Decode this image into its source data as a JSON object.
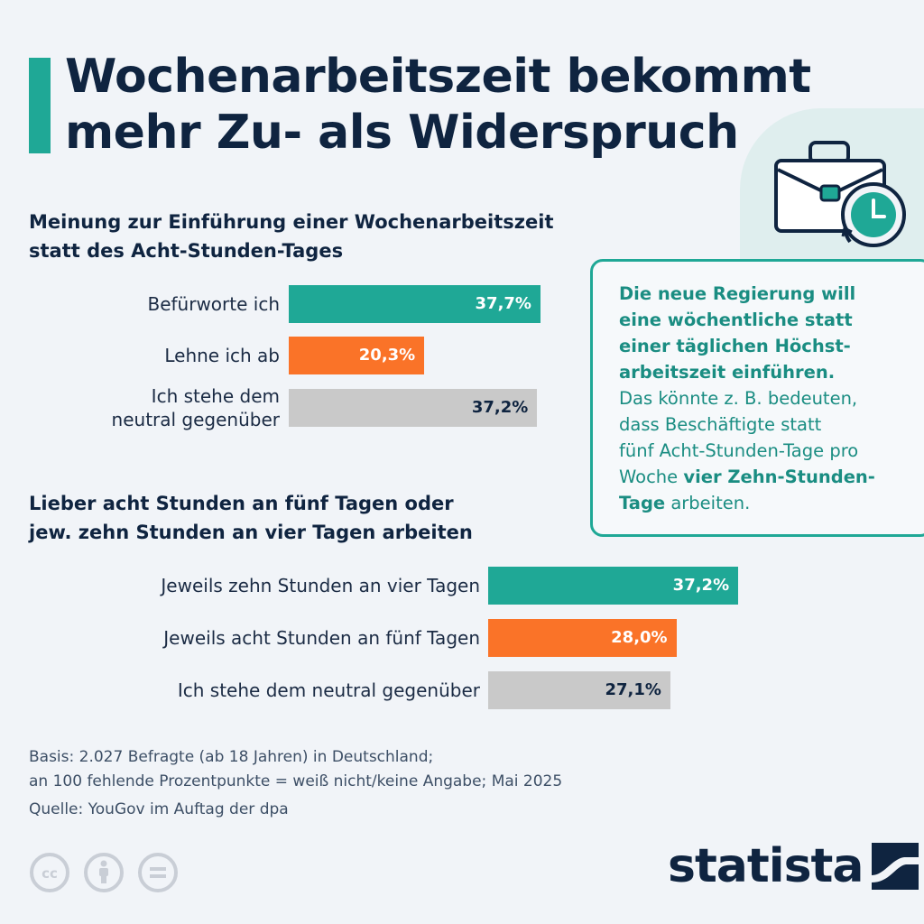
{
  "title": [
    "Wochenarbeitszeit bekommt",
    "mehr Zu- als Widerspruch"
  ],
  "colors": {
    "teal": "#1fa896",
    "orange": "#fa7328",
    "gray": "#c9c9c9",
    "navy": "#0f2440"
  },
  "icons": {
    "illustration": "briefcase-clock-icon"
  },
  "chart_data": [
    {
      "type": "bar",
      "title": [
        "Meinung zur Einführung einer Wochenarbeitszeit",
        "statt des Acht-Stunden-Tages"
      ],
      "categories": [
        [
          "Befürworte ich"
        ],
        [
          "Lehne ich ab"
        ],
        [
          "Ich stehe dem",
          "neutral gegenüber"
        ]
      ],
      "values": [
        37.7,
        20.3,
        37.2
      ],
      "value_labels": [
        "37,7%",
        "20,3%",
        "37,2%"
      ],
      "bar_colors": [
        "#1fa896",
        "#fa7328",
        "#c9c9c9"
      ],
      "xlabel": "",
      "ylabel": "",
      "unit": "%"
    },
    {
      "type": "bar",
      "title": [
        "Lieber acht Stunden an fünf Tagen oder",
        "jew. zehn Stunden an vier Tagen arbeiten"
      ],
      "categories": [
        [
          "Jeweils zehn Stunden an vier Tagen"
        ],
        [
          "Jeweils acht Stunden an fünf Tagen"
        ],
        [
          "Ich stehe dem neutral gegenüber"
        ]
      ],
      "values": [
        37.2,
        28.0,
        27.1
      ],
      "value_labels": [
        "37,2%",
        "28,0%",
        "27,1%"
      ],
      "bar_colors": [
        "#1fa896",
        "#fa7328",
        "#c9c9c9"
      ],
      "xlabel": "",
      "ylabel": "",
      "unit": "%"
    }
  ],
  "info_box": {
    "bold_lines": [
      "Die neue Regierung will",
      "eine wöchentliche statt",
      "einer täglichen Höchst-",
      "arbeitszeit einführen."
    ],
    "normal_lines": [
      "Das könnte z. B. bedeuten,",
      "dass Beschäftigte statt",
      "fünf Acht-Stunden-Tage pro"
    ],
    "line8": {
      "pre": "Woche ",
      "bold": "vier Zehn-Stunden-"
    },
    "line9": {
      "bold": "Tage",
      "post": " arbeiten."
    }
  },
  "footnote": {
    "basis": [
      "Basis: 2.027 Befragte (ab 18 Jahren) in Deutschland;",
      "an 100 fehlende Prozentpunkte = weiß nicht/keine Angabe; Mai 2025"
    ],
    "source": "Quelle: YouGov im Auftag der dpa"
  },
  "license_icons": [
    "cc-icon",
    "attribution-icon",
    "no-derivatives-icon"
  ],
  "brand": "statista"
}
